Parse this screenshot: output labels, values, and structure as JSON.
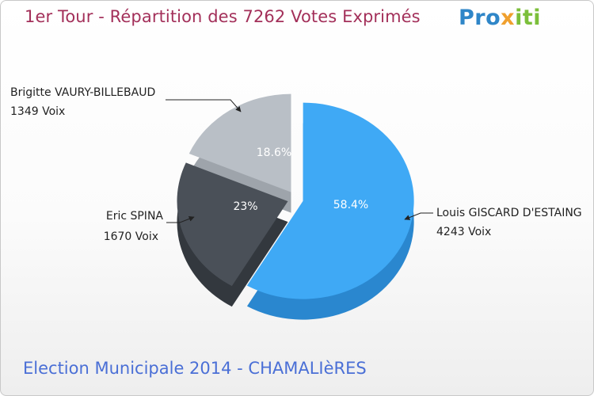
{
  "header": {
    "title": "1er Tour - Répartition des 7262 Votes Exprimés",
    "logo": {
      "parts": [
        "Pro",
        "x",
        "iti"
      ]
    }
  },
  "footer": {
    "subtitle": "Election Municipale 2014 - CHAMALIèRES"
  },
  "chart_data": {
    "type": "pie",
    "title": "1er Tour - Répartition des 7262 Votes Exprimés",
    "total": 7262,
    "slices": [
      {
        "name": "Louis GISCARD D'ESTAING",
        "votes_text": "4243 Voix",
        "value": 4243,
        "percent": 58.4,
        "percent_label": "58.4%",
        "color": "#3fa9f5",
        "side": "#2a87cf"
      },
      {
        "name": "Eric SPINA",
        "votes_text": "1670 Voix",
        "value": 1670,
        "percent": 23,
        "percent_label": "23%",
        "color": "#4a5058",
        "side": "#33383e"
      },
      {
        "name": "Brigitte VAURY-BILLEBAUD",
        "votes_text": "1349 Voix",
        "value": 1349,
        "percent": 18.6,
        "percent_label": "18.6%",
        "color": "#b9bfc6",
        "side": "#9ea4ab"
      }
    ]
  }
}
